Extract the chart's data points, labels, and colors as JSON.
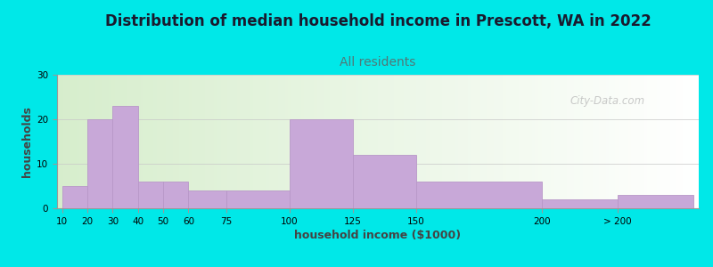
{
  "title": "Distribution of median household income in Prescott, WA in 2022",
  "subtitle": "All residents",
  "xlabel": "household income ($1000)",
  "ylabel": "households",
  "bar_labels": [
    "10",
    "20",
    "30",
    "40",
    "50",
    "60",
    "75",
    "100",
    "125",
    "150",
    "200",
    "> 200"
  ],
  "bar_heights": [
    5,
    20,
    23,
    6,
    6,
    4,
    4,
    20,
    12,
    6,
    2,
    3
  ],
  "bar_color": "#c8a8d8",
  "bar_edge_color": "#b898c8",
  "ylim": [
    0,
    30
  ],
  "yticks": [
    0,
    10,
    20,
    30
  ],
  "bg_color": "#00e8e8",
  "title_fontsize": 12,
  "subtitle_fontsize": 10,
  "title_color": "#1a1a2e",
  "subtitle_color": "#507878",
  "axis_label_fontsize": 9,
  "tick_fontsize": 7.5,
  "watermark": "City-Data.com",
  "x_positions": [
    10,
    20,
    30,
    40,
    50,
    60,
    75,
    100,
    125,
    150,
    200,
    230
  ],
  "x_widths": [
    10,
    10,
    10,
    10,
    10,
    15,
    25,
    25,
    25,
    50,
    30,
    30
  ],
  "x_ticks": [
    10,
    20,
    30,
    40,
    50,
    60,
    75,
    100,
    125,
    150,
    200,
    230
  ],
  "xlim": [
    8,
    262
  ]
}
